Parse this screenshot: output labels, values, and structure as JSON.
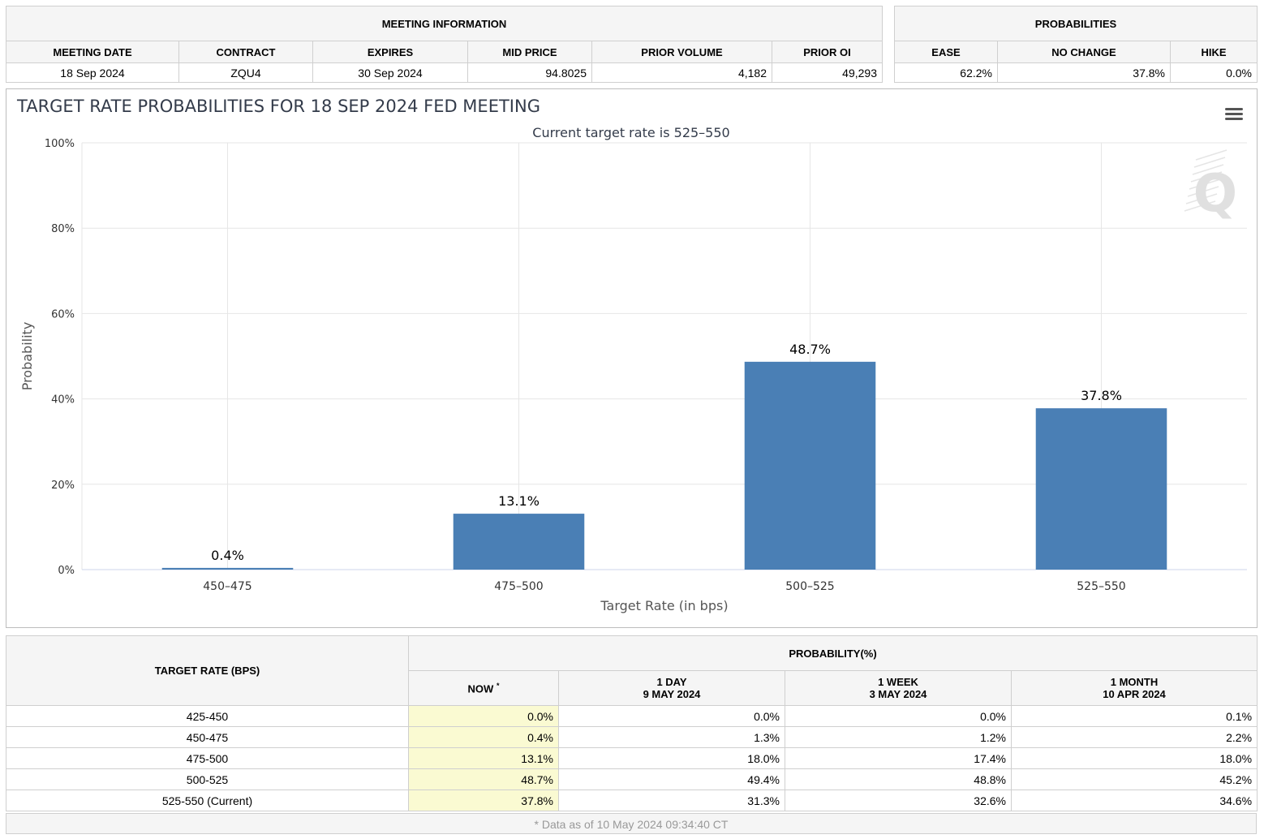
{
  "meeting_info": {
    "title": "MEETING INFORMATION",
    "headers": [
      "MEETING DATE",
      "CONTRACT",
      "EXPIRES",
      "MID PRICE",
      "PRIOR VOLUME",
      "PRIOR OI"
    ],
    "values": [
      "18 Sep 2024",
      "ZQU4",
      "30 Sep 2024",
      "94.8025",
      "4,182",
      "49,293"
    ]
  },
  "probabilities": {
    "title": "PROBABILITIES",
    "headers": [
      "EASE",
      "NO CHANGE",
      "HIKE"
    ],
    "values": [
      "62.2%",
      "37.8%",
      "0.0%"
    ]
  },
  "chart": {
    "menu_icon": "hamburger-menu-icon",
    "watermark_icon": "q-logo-icon"
  },
  "chart_data": {
    "type": "bar",
    "title": "TARGET RATE PROBABILITIES FOR 18 SEP 2024 FED MEETING",
    "subtitle": "Current target rate is 525–550",
    "xlabel": "Target Rate (in bps)",
    "ylabel": "Probability",
    "categories": [
      "450–475",
      "475–500",
      "500–525",
      "525–550"
    ],
    "values": [
      0.4,
      13.1,
      48.7,
      37.8
    ],
    "data_labels": [
      "0.4%",
      "13.1%",
      "48.7%",
      "37.8%"
    ],
    "ylim": [
      0,
      100
    ],
    "yticks": [
      0,
      20,
      40,
      60,
      80,
      100
    ],
    "ytick_labels": [
      "0%",
      "20%",
      "40%",
      "60%",
      "80%",
      "100%"
    ],
    "grid": true,
    "bar_color": "#4a7fb5",
    "legend": "none"
  },
  "prob_table": {
    "target_header": "TARGET RATE (BPS)",
    "prob_header": "PROBABILITY(%)",
    "col_now": "NOW",
    "col_now_mark": "*",
    "col_1day": "1 DAY",
    "col_1day_date": "9 MAY 2024",
    "col_1week": "1 WEEK",
    "col_1week_date": "3 MAY 2024",
    "col_1month": "1 MONTH",
    "col_1month_date": "10 APR 2024",
    "rows": [
      {
        "rate": "425-450",
        "now": "0.0%",
        "day": "0.0%",
        "week": "0.0%",
        "month": "0.1%"
      },
      {
        "rate": "450-475",
        "now": "0.4%",
        "day": "1.3%",
        "week": "1.2%",
        "month": "2.2%"
      },
      {
        "rate": "475-500",
        "now": "13.1%",
        "day": "18.0%",
        "week": "17.4%",
        "month": "18.0%"
      },
      {
        "rate": "500-525",
        "now": "48.7%",
        "day": "49.4%",
        "week": "48.8%",
        "month": "45.2%"
      },
      {
        "rate": "525-550 (Current)",
        "now": "37.8%",
        "day": "31.3%",
        "week": "32.6%",
        "month": "34.6%"
      }
    ],
    "footnote": "* Data as of 10 May 2024 09:34:40 CT"
  }
}
